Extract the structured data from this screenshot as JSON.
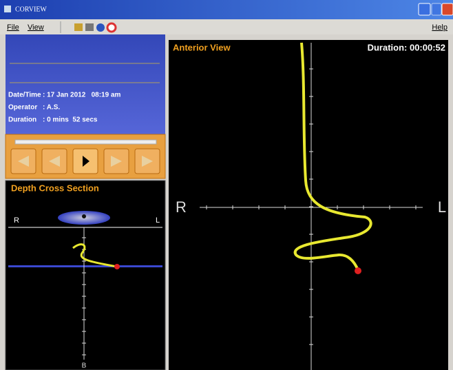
{
  "window": {
    "title": "CORVIEW"
  },
  "menu": {
    "items": [
      "File",
      "View"
    ],
    "help": "Help"
  },
  "info": {
    "rows": [
      [
        "Date/Time",
        ": 17 Jan 2012   08:19 am"
      ],
      [
        "Operator",
        ": A.S."
      ],
      [
        "Duration",
        ": 0 mins  52 secs"
      ]
    ]
  },
  "depth_panel": {
    "title": "Depth Cross Section",
    "left_label": "R",
    "right_label": "L",
    "bottom_label": "B"
  },
  "anterior_view": {
    "title": "Anterior View",
    "duration": "Duration: 00:00:52",
    "left_label": "R",
    "right_label": "L"
  }
}
